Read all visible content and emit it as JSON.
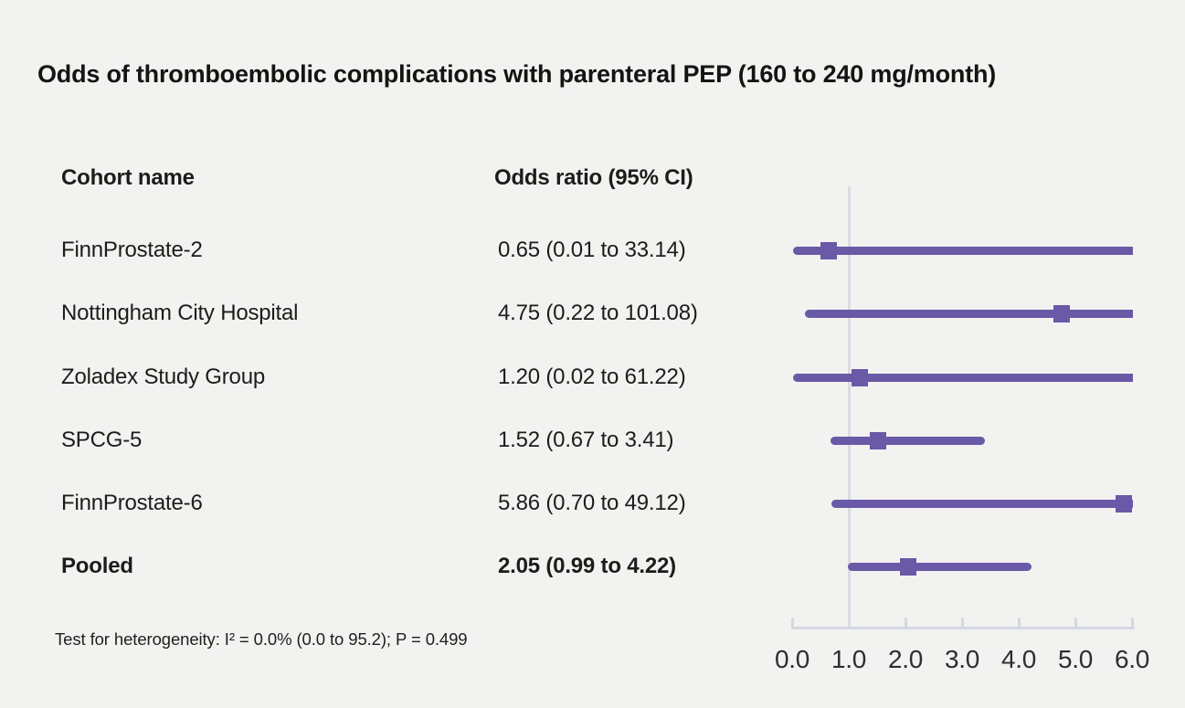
{
  "title": "Odds of thromboembolic complications with parenteral PEP (160 to 240 mg/month)",
  "columns": {
    "cohort": "Cohort name",
    "odds": "Odds ratio (95% CI)"
  },
  "footnote": "Test for heterogeneity: I² = 0.0% (0.0 to 95.2); P = 0.499",
  "chart_data": {
    "type": "forest",
    "title": "Odds of thromboembolic complications with parenteral PEP (160 to 240 mg/month)",
    "xlim": [
      0,
      6
    ],
    "x_ticks": [
      0,
      1,
      2,
      3,
      4,
      5,
      6
    ],
    "x_tick_labels": [
      "0.0",
      "1.0",
      "2.0",
      "3.0",
      "4.0",
      "5.0",
      "6.0"
    ],
    "reference_line": 1.0,
    "grid": false,
    "legend": "none",
    "marker_shape": "square",
    "colors": {
      "series": "#6a59a6",
      "axis": "#d3d8e0",
      "reference_line": "#d9dce3",
      "background": "#f2f2f1",
      "text": "#1c1c1a"
    },
    "rows": [
      {
        "label": "FinnProstate-2",
        "or": 0.65,
        "ci_low": 0.01,
        "ci_high": 33.14,
        "or_text": "0.65 (0.01 to 33.14)",
        "bold": false
      },
      {
        "label": "Nottingham City Hospital",
        "or": 4.75,
        "ci_low": 0.22,
        "ci_high": 101.08,
        "or_text": "4.75 (0.22 to 101.08)",
        "bold": false
      },
      {
        "label": "Zoladex Study Group",
        "or": 1.2,
        "ci_low": 0.02,
        "ci_high": 61.22,
        "or_text": "1.20 (0.02 to 61.22)",
        "bold": false
      },
      {
        "label": "SPCG-5",
        "or": 1.52,
        "ci_low": 0.67,
        "ci_high": 3.41,
        "or_text": "1.52 (0.67 to 3.41)",
        "bold": false
      },
      {
        "label": "FinnProstate-6",
        "or": 5.86,
        "ci_low": 0.7,
        "ci_high": 49.12,
        "or_text": "5.86 (0.70 to 49.12)",
        "bold": false
      },
      {
        "label": "Pooled",
        "or": 2.05,
        "ci_low": 0.99,
        "ci_high": 4.22,
        "or_text": "2.05 (0.99 to 4.22)",
        "bold": true
      }
    ]
  }
}
